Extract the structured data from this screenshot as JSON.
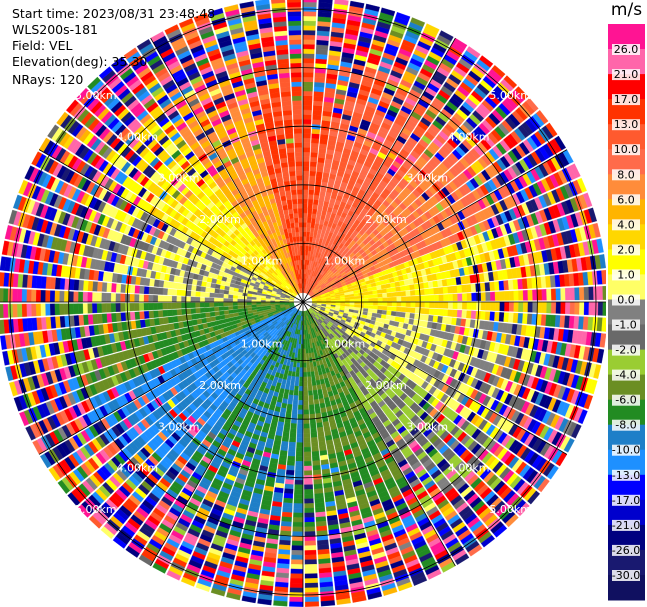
{
  "info": {
    "start_time": "Start time: 2023/08/31 23:48:48",
    "instrument": "WLS200s-181",
    "field": "Field: VEL",
    "elevation": "Elevation(deg): 35.30",
    "nrays": "NRays: 120"
  },
  "chart_data": {
    "type": "heatmap",
    "projection": "polar-ppi",
    "n_rays": 120,
    "range_rings_km": [
      1.0,
      2.0,
      3.0,
      4.0,
      5.0
    ],
    "ring_labels": [
      "1.00km",
      "2.00km",
      "3.00km",
      "4.00km",
      "5.00km"
    ],
    "max_range_km": 5.2,
    "colorbar": {
      "unit": "m/s",
      "ticks": [
        "26.0",
        "21.0",
        "17.0",
        "13.0",
        "10.0",
        "8.0",
        "6.0",
        "4.0",
        "2.0",
        "1.0",
        "0.0",
        "-1.0",
        "-2.0",
        "-4.0",
        "-6.0",
        "-8.0",
        "-10.0",
        "-13.0",
        "-17.0",
        "-21.0",
        "-26.0",
        "-30.0"
      ],
      "colors": [
        "#ff1493",
        "#ff66aa",
        "#ff0000",
        "#ff3300",
        "#ff5a2e",
        "#ff6b4a",
        "#ff8c3a",
        "#ffb400",
        "#ffd700",
        "#ffff00",
        "#ffff66",
        "#808080",
        "#696969",
        "#9acd32",
        "#6b8e23",
        "#228b22",
        "#1e7fc8",
        "#1e90ff",
        "#0000ff",
        "#0000cd",
        "#000080",
        "#191970",
        "#101060"
      ]
    },
    "regions": [
      {
        "from_deg": 270,
        "to_deg": 300,
        "velocity": 0.0
      },
      {
        "from_deg": 300,
        "to_deg": 325,
        "velocity": 2.0
      },
      {
        "from_deg": 325,
        "to_deg": 345,
        "velocity": 6.0
      },
      {
        "from_deg": 345,
        "to_deg": 10,
        "velocity": 13.0
      },
      {
        "from_deg": 10,
        "to_deg": 40,
        "velocity": 10.0
      },
      {
        "from_deg": 40,
        "to_deg": 70,
        "velocity": 8.0
      },
      {
        "from_deg": 70,
        "to_deg": 95,
        "velocity": 2.0
      },
      {
        "from_deg": 95,
        "to_deg": 125,
        "velocity": 0.0
      },
      {
        "from_deg": 125,
        "to_deg": 150,
        "velocity": -2.0
      },
      {
        "from_deg": 150,
        "to_deg": 180,
        "velocity": -6.0
      },
      {
        "from_deg": 180,
        "to_deg": 215,
        "velocity": -8.0
      },
      {
        "from_deg": 215,
        "to_deg": 245,
        "velocity": -10.0
      },
      {
        "from_deg": 245,
        "to_deg": 270,
        "velocity": -6.0
      }
    ]
  }
}
